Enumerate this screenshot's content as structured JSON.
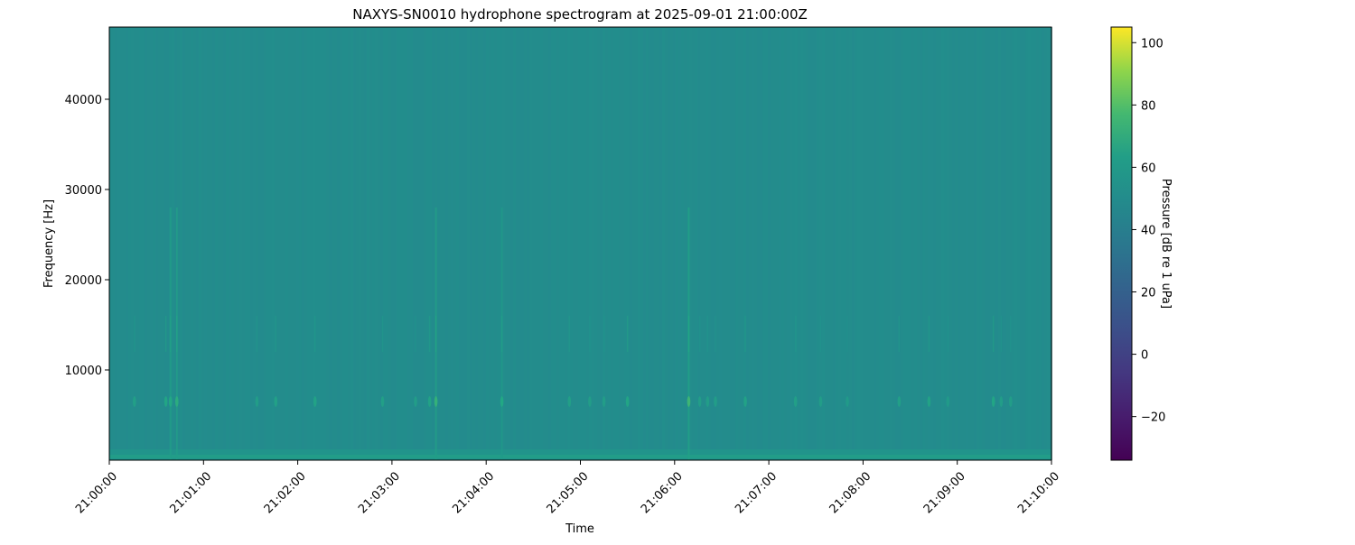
{
  "chart_data": {
    "type": "heatmap",
    "title": "NAXYS-SN0010 hydrophone spectrogram at 2025-09-01 21:00:00Z",
    "xlabel": "Time",
    "ylabel": "Frequency [Hz]",
    "colorbar_label": "Pressure [dB re 1 uPa]",
    "colormap": "viridis",
    "x_range": [
      "21:00:00",
      "21:10:00"
    ],
    "x_ticks": [
      "21:00:00",
      "21:01:00",
      "21:02:00",
      "21:03:00",
      "21:04:00",
      "21:05:00",
      "21:06:00",
      "21:07:00",
      "21:08:00",
      "21:09:00",
      "21:10:00"
    ],
    "ylim": [
      0,
      48000
    ],
    "y_ticks": [
      10000,
      20000,
      30000,
      40000
    ],
    "y_tick_labels": [
      "10000",
      "20000",
      "30000",
      "40000"
    ],
    "clim": [
      -34,
      105
    ],
    "colorbar_ticks": [
      -20,
      0,
      20,
      40,
      60,
      80,
      100
    ],
    "colorbar_tick_labels": [
      "−20",
      "0",
      "20",
      "40",
      "60",
      "80",
      "100"
    ],
    "background_level_db": 50,
    "low_frequency_band": {
      "freq_range": [
        0,
        1200
      ],
      "level_db": 60
    },
    "tonal_events": {
      "freq_hz": 6500,
      "times": [
        "21:00:16",
        "21:00:36",
        "21:00:39",
        "21:00:43",
        "21:01:34",
        "21:01:46",
        "21:02:11",
        "21:02:54",
        "21:03:15",
        "21:03:24",
        "21:03:28",
        "21:04:10",
        "21:04:53",
        "21:05:06",
        "21:05:15",
        "21:05:30",
        "21:06:09",
        "21:06:16",
        "21:06:21",
        "21:06:26",
        "21:06:45",
        "21:07:17",
        "21:07:33",
        "21:07:50",
        "21:08:23",
        "21:08:42",
        "21:08:54",
        "21:09:23",
        "21:09:28",
        "21:09:34"
      ],
      "peak_db": [
        64,
        68,
        70,
        72,
        62,
        65,
        66,
        64,
        62,
        66,
        74,
        70,
        64,
        62,
        62,
        68,
        76,
        62,
        62,
        62,
        66,
        64,
        62,
        60,
        64,
        66,
        60,
        68,
        62,
        62
      ]
    },
    "broadband_events": {
      "times": [
        "21:00:39",
        "21:00:43",
        "21:03:28",
        "21:04:10",
        "21:06:09"
      ],
      "freq_range_hz": [
        0,
        28000
      ],
      "peak_db": [
        62,
        62,
        64,
        60,
        66
      ]
    }
  }
}
